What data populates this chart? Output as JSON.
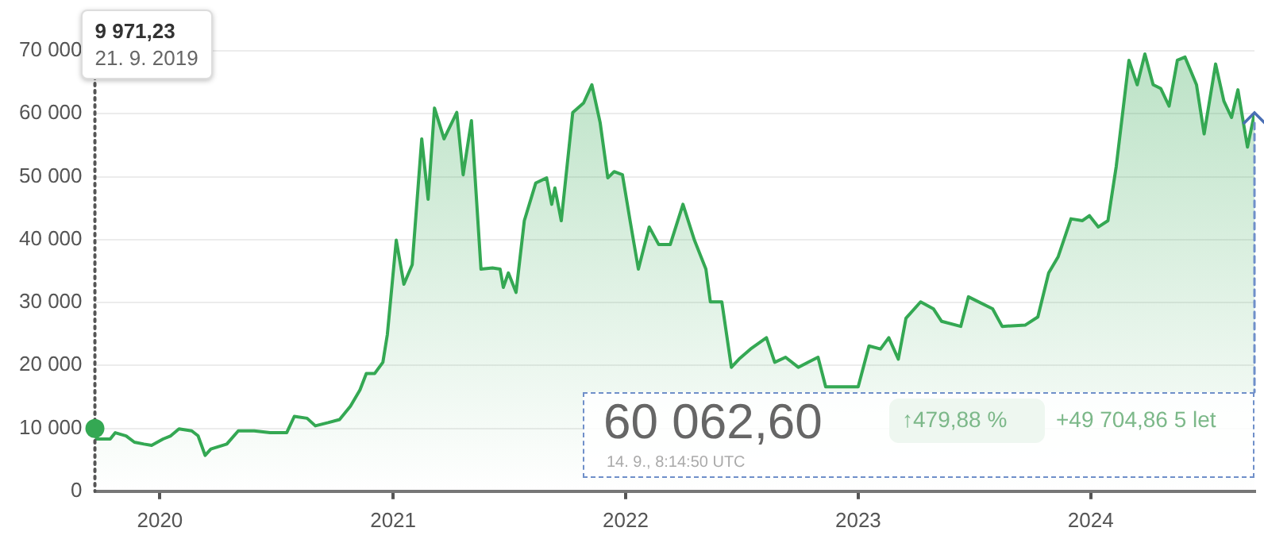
{
  "chart_data": {
    "type": "area",
    "x": [
      "2019-09-21",
      "2019-09-22",
      "2019-10-15",
      "2019-10-23",
      "2019-11-09",
      "2019-11-22",
      "2019-12-07",
      "2019-12-19",
      "2020-01-06",
      "2020-01-18",
      "2020-01-31",
      "2020-02-20",
      "2020-03-01",
      "2020-03-12",
      "2020-03-21",
      "2020-04-15",
      "2020-05-03",
      "2020-05-28",
      "2020-06-22",
      "2020-07-18",
      "2020-07-30",
      "2020-08-19",
      "2020-09-01",
      "2020-09-21",
      "2020-10-09",
      "2020-10-26",
      "2020-11-10",
      "2020-11-20",
      "2020-12-03",
      "2020-12-16",
      "2020-12-23",
      "2021-01-06",
      "2021-01-18",
      "2021-01-31",
      "2021-02-15",
      "2021-02-25",
      "2021-03-07",
      "2021-03-22",
      "2021-04-11",
      "2021-04-21",
      "2021-05-04",
      "2021-05-19",
      "2021-06-06",
      "2021-06-18",
      "2021-06-23",
      "2021-07-01",
      "2021-07-13",
      "2021-07-26",
      "2021-08-13",
      "2021-08-30",
      "2021-09-07",
      "2021-09-12",
      "2021-09-22",
      "2021-10-10",
      "2021-10-27",
      "2021-11-09",
      "2021-11-22",
      "2021-12-04",
      "2021-12-14",
      "2021-12-27",
      "2022-01-08",
      "2022-01-21",
      "2022-02-07",
      "2022-02-22",
      "2022-03-12",
      "2022-04-01",
      "2022-04-19",
      "2022-05-07",
      "2022-05-14",
      "2022-06-01",
      "2022-06-16",
      "2022-06-28",
      "2022-07-16",
      "2022-08-10",
      "2022-08-23",
      "2022-09-09",
      "2022-09-29",
      "2022-10-30",
      "2022-11-11",
      "2022-12-19",
      "2023-01-01",
      "2023-01-18",
      "2023-02-05",
      "2023-02-18",
      "2023-03-05",
      "2023-03-17",
      "2023-04-09",
      "2023-04-29",
      "2023-05-12",
      "2023-06-11",
      "2023-06-23",
      "2023-07-31",
      "2023-08-15",
      "2023-09-20",
      "2023-10-10",
      "2023-10-27",
      "2023-11-11",
      "2023-12-01",
      "2023-12-19",
      "2023-12-30",
      "2024-01-13",
      "2024-01-28",
      "2024-02-10",
      "2024-03-01",
      "2024-03-14",
      "2024-03-26",
      "2024-04-08",
      "2024-04-20",
      "2024-05-03",
      "2024-05-16",
      "2024-05-28",
      "2024-06-15",
      "2024-06-27",
      "2024-07-15",
      "2024-07-28",
      "2024-08-09",
      "2024-08-19",
      "2024-09-03",
      "2024-09-14"
    ],
    "series": [
      {
        "color": "#34a853",
        "values": [
          9970,
          8300,
          8300,
          9300,
          8800,
          7800,
          7500,
          7300,
          8300,
          8800,
          9900,
          9600,
          8800,
          5700,
          6700,
          7500,
          9600,
          9600,
          9300,
          9300,
          11900,
          11600,
          10400,
          10900,
          11400,
          13500,
          16100,
          18700,
          18700,
          20500,
          24900,
          39900,
          32900,
          36000,
          56000,
          46400,
          60900,
          56000,
          60200,
          50300,
          58900,
          35300,
          35500,
          35300,
          32400,
          34700,
          31600,
          43000,
          49000,
          49800,
          45600,
          48200,
          43000,
          60200,
          61700,
          64600,
          58600,
          49800,
          50800,
          50300,
          43000,
          35300,
          42000,
          39200,
          39200,
          45600,
          39900,
          35300,
          30100,
          30100,
          19700,
          21000,
          22600,
          24400,
          20500,
          21300,
          19700,
          21300,
          16600,
          16600,
          16600,
          23100,
          22600,
          24400,
          21000,
          27500,
          30100,
          29000,
          27000,
          26200,
          30900,
          29000,
          26200,
          26400,
          27700,
          34700,
          37300,
          43300,
          43000,
          43800,
          42000,
          43000,
          51600,
          68500,
          64600,
          69500,
          64600,
          64000,
          61200,
          68500,
          69000,
          64600,
          56800,
          67900,
          62000,
          59400,
          63800,
          54700,
          60060
        ]
      }
    ],
    "xlim": [
      "2019-09-21",
      "2024-09-14"
    ],
    "xticks": [
      "2020",
      "2021",
      "2022",
      "2023",
      "2024"
    ],
    "ylim": [
      0,
      70000
    ],
    "yticks": [
      0,
      {
        "value": 10000,
        "label": "10 000"
      },
      {
        "value": 20000,
        "label": "20 000"
      },
      {
        "value": 30000,
        "label": "30 000"
      },
      {
        "value": 40000,
        "label": "40 000"
      },
      {
        "value": 50000,
        "label": "50 000"
      },
      {
        "value": 60000,
        "label": "60 000"
      },
      {
        "value": 70000,
        "label": "70 000"
      }
    ],
    "grid": "y",
    "legend": false,
    "marker": "none",
    "ref_lines": [
      {
        "axis": "x",
        "value": "2019-09-21",
        "line_style": "dotted",
        "color": "#555555"
      }
    ],
    "annotations": [
      "9 971,23",
      "21. 9. 2019",
      "60 062,60",
      "↑479,88 %",
      "+49 704,86 5 let",
      "14. 9., 8:14:50 UTC"
    ]
  }
}
